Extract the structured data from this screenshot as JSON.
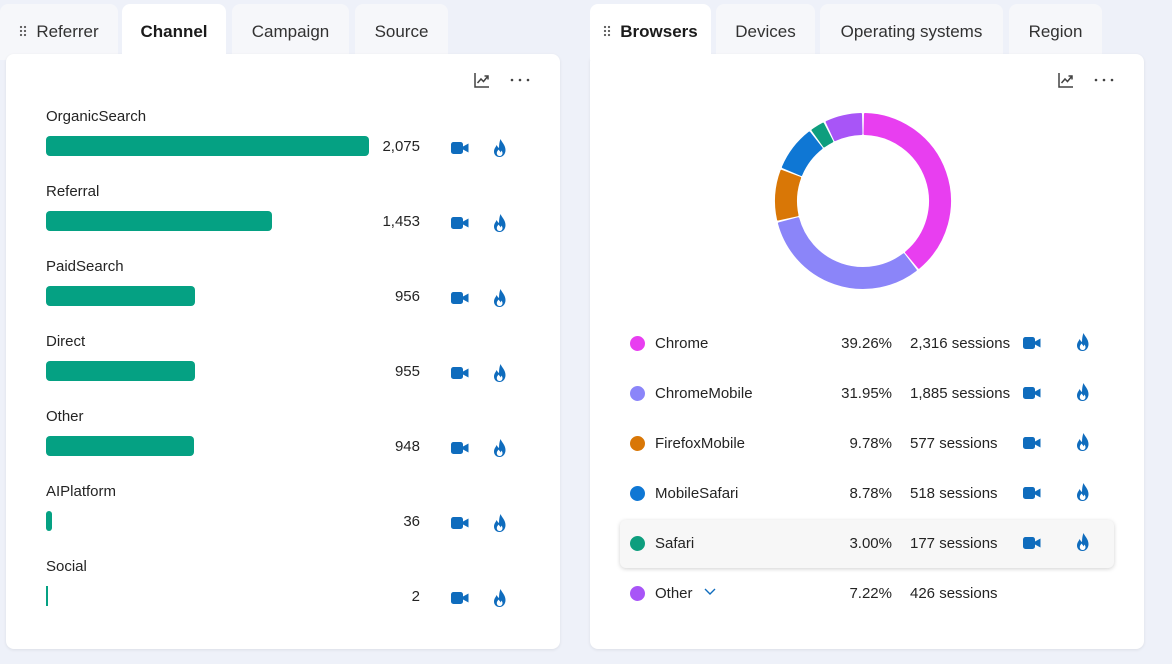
{
  "left_panel": {
    "tabs": [
      {
        "label": "Referrer",
        "active": false,
        "grip": true
      },
      {
        "label": "Channel",
        "active": true,
        "grip": false
      },
      {
        "label": "Campaign",
        "active": false,
        "grip": false
      },
      {
        "label": "Source",
        "active": false,
        "grip": false
      }
    ],
    "tools": {
      "chart_icon": "line-chart-icon",
      "more_icon": "more-icon"
    },
    "row_icons": [
      "video-camera-icon",
      "flame-icon"
    ],
    "bar_color": "#05a183",
    "rows": [
      {
        "label": "OrganicSearch",
        "value": 2075,
        "value_text": "2,075"
      },
      {
        "label": "Referral",
        "value": 1453,
        "value_text": "1,453"
      },
      {
        "label": "PaidSearch",
        "value": 956,
        "value_text": "956"
      },
      {
        "label": "Direct",
        "value": 955,
        "value_text": "955"
      },
      {
        "label": "Other",
        "value": 948,
        "value_text": "948"
      },
      {
        "label": "AIPlatform",
        "value": 36,
        "value_text": "36"
      },
      {
        "label": "Social",
        "value": 2,
        "value_text": "2"
      }
    ]
  },
  "right_panel": {
    "tabs": [
      {
        "label": "Browsers",
        "active": true,
        "grip": true
      },
      {
        "label": "Devices",
        "active": false,
        "grip": false
      },
      {
        "label": "Operating systems",
        "active": false,
        "grip": false
      },
      {
        "label": "Region",
        "active": false,
        "grip": false
      }
    ],
    "tools": {
      "chart_icon": "line-chart-icon",
      "more_icon": "more-icon"
    },
    "row_icons": [
      "video-camera-icon",
      "flame-icon"
    ],
    "legend": [
      {
        "name": "Chrome",
        "pct": "39.26%",
        "sessions": "2,316 sessions",
        "color": "#e83ef0",
        "icons": true,
        "expand": false
      },
      {
        "name": "ChromeMobile",
        "pct": "31.95%",
        "sessions": "1,885 sessions",
        "color": "#8b85f9",
        "icons": true,
        "expand": false
      },
      {
        "name": "FirefoxMobile",
        "pct": "9.78%",
        "sessions": "577 sessions",
        "color": "#d97706",
        "icons": true,
        "expand": false
      },
      {
        "name": "MobileSafari",
        "pct": "8.78%",
        "sessions": "518 sessions",
        "color": "#0f77d4",
        "icons": true,
        "expand": false
      },
      {
        "name": "Safari",
        "pct": "3.00%",
        "sessions": "177 sessions",
        "color": "#0e9e7e",
        "icons": true,
        "expand": false,
        "highlight": true
      },
      {
        "name": "Other",
        "pct": "7.22%",
        "sessions": "426 sessions",
        "color": "#a855f7",
        "icons": false,
        "expand": true
      }
    ]
  },
  "chart_data": [
    {
      "type": "bar",
      "orientation": "horizontal",
      "categories": [
        "OrganicSearch",
        "Referral",
        "PaidSearch",
        "Direct",
        "Other",
        "AIPlatform",
        "Social"
      ],
      "values": [
        2075,
        1453,
        956,
        955,
        948,
        36,
        2
      ],
      "title": "",
      "xlabel": "",
      "ylabel": "",
      "xlim": [
        0,
        2075
      ],
      "grid": false,
      "legend": "none"
    },
    {
      "type": "pie",
      "donut": true,
      "categories": [
        "Chrome",
        "ChromeMobile",
        "FirefoxMobile",
        "MobileSafari",
        "Safari",
        "Other"
      ],
      "values": [
        39.26,
        31.95,
        9.78,
        8.78,
        3.0,
        7.22
      ],
      "sessions": [
        2316,
        1885,
        577,
        518,
        177,
        426
      ],
      "colors": [
        "#e83ef0",
        "#8b85f9",
        "#d97706",
        "#0f77d4",
        "#0e9e7e",
        "#a855f7"
      ],
      "title": "",
      "legend": "bottom"
    }
  ]
}
